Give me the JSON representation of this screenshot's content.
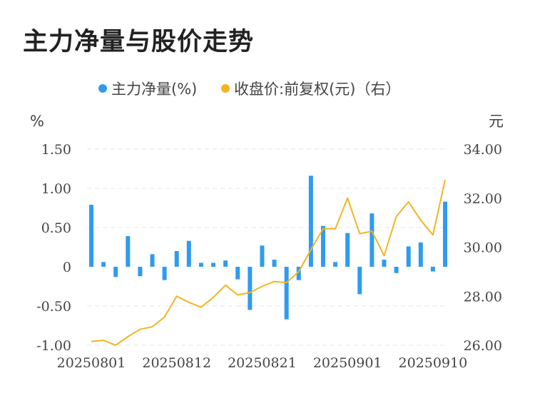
{
  "title": "主力净量与股价走势",
  "chart_data": {
    "type": "bar+line",
    "title": "主力净量与股价走势",
    "left_unit": "%",
    "right_unit": "元",
    "legend": [
      {
        "name": "主力净量(%)",
        "color": "#2f9bf0",
        "position": "top"
      },
      {
        "name": "收盘价:前复权(元)（右）",
        "color": "#f2b422"
      }
    ],
    "y_left": {
      "min": -1.0,
      "max": 1.5,
      "ticks": [
        1.5,
        1.0,
        0.5,
        0,
        -0.5,
        -1.0
      ],
      "tick_labels": [
        "1.50",
        "1.00",
        "0.50",
        "0",
        "-0.50",
        "-1.00"
      ]
    },
    "y_right": {
      "min": 26.0,
      "max": 34.0,
      "ticks": [
        34,
        32,
        30,
        28,
        26
      ],
      "tick_labels": [
        "34.00",
        "32.00",
        "30.00",
        "28.00",
        "26.00"
      ]
    },
    "x_tick_labels": [
      {
        "label": "20250801",
        "index": 0
      },
      {
        "label": "20250812",
        "index": 7
      },
      {
        "label": "20250821",
        "index": 14
      },
      {
        "label": "20250901",
        "index": 21
      },
      {
        "label": "20250910",
        "index": 28
      }
    ],
    "bars": [
      0.79,
      0.06,
      -0.13,
      0.39,
      -0.12,
      0.16,
      -0.17,
      0.2,
      0.33,
      0.05,
      0.05,
      0.08,
      -0.16,
      -0.55,
      0.27,
      0.09,
      -0.67,
      -0.17,
      1.16,
      0.52,
      0.06,
      0.43,
      -0.35,
      0.68,
      0.09,
      -0.08,
      0.26,
      0.31,
      -0.06,
      0.83
    ],
    "line": [
      26.15,
      26.2,
      26.0,
      26.35,
      26.65,
      26.75,
      27.15,
      28.0,
      27.75,
      27.55,
      27.95,
      28.45,
      28.05,
      28.15,
      28.4,
      28.6,
      28.55,
      29.0,
      29.9,
      30.75,
      30.75,
      32.0,
      30.55,
      30.65,
      29.65,
      31.25,
      31.85,
      31.1,
      30.5,
      32.75
    ]
  }
}
